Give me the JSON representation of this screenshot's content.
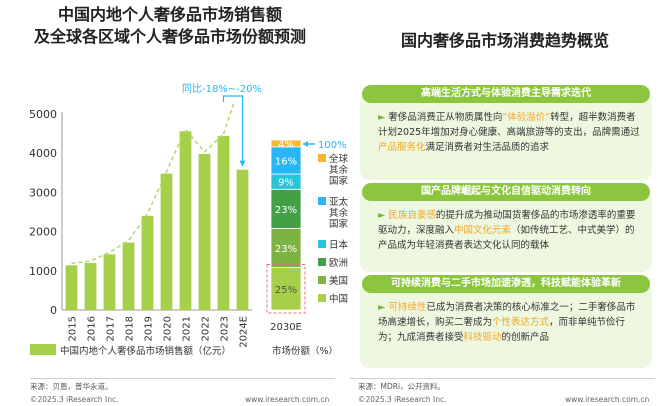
{
  "titles": {
    "left_line1": "中国内地个人奢侈品市场销售额",
    "left_line2": "及全球各区域个人奢侈品市场份额预测",
    "right": "国内奢侈品市场消费趋势概览"
  },
  "colors": {
    "bar": "#a6d04a",
    "trend": "#b5d66a",
    "arrow": "#29b6f6",
    "accent_text": "#f5a623",
    "card_head": "#8cc63f",
    "card_bg": "#eef7df"
  },
  "chart_data": [
    {
      "type": "bar",
      "categories": [
        "2015",
        "2016",
        "2017",
        "2018",
        "2019",
        "2020",
        "2021",
        "2022",
        "2023",
        "2024E"
      ],
      "values": [
        1140,
        1200,
        1420,
        1720,
        2400,
        3480,
        4560,
        3980,
        4440,
        3580
      ],
      "ylim": [
        0,
        5000
      ],
      "yticks": [
        0,
        1000,
        2000,
        3000,
        4000,
        5000
      ],
      "legend": "中国内地个人奢侈品市场销售额（亿元）",
      "annotation": "同比-18%~-20%",
      "trend_line": true,
      "grid": false
    },
    {
      "type": "bar",
      "stacked": true,
      "categories": [
        "2030E"
      ],
      "series": [
        {
          "name": "中国",
          "value": 25,
          "label": "25%",
          "color": "#a6d04a"
        },
        {
          "name": "美国",
          "value": 23,
          "label": "23%",
          "color": "#7cb342"
        },
        {
          "name": "欧洲",
          "value": 23,
          "label": "23%",
          "color": "#43a047"
        },
        {
          "name": "日本",
          "value": 9,
          "label": "9%",
          "color": "#26c6da"
        },
        {
          "name": "亚太其余国家",
          "value": 16,
          "label": "16%",
          "color": "#29b6f6"
        },
        {
          "name": "全球其余国家",
          "value": 4,
          "label": "4%",
          "color": "#f7b733"
        }
      ],
      "total_label": "100%",
      "legend_title": "市场份额（%）",
      "legend_labels": [
        "全球其余国家",
        "亚太其余国家",
        "日本",
        "欧洲",
        "美国",
        "中国"
      ]
    }
  ],
  "cards": [
    {
      "head": "高端生活方式与体验消费主导需求迭代",
      "parts": [
        {
          "t": "奢侈品消费正从物质属性向"
        },
        {
          "t": "“体验溢价”",
          "hl": true
        },
        {
          "t": "转型，超半数消费者计划2025年增加对身心健康、高端旅游等的支出，品牌需通过"
        },
        {
          "t": "产品服务化",
          "hl": true
        },
        {
          "t": "满足消费者对生活品质的追求"
        }
      ]
    },
    {
      "head": "国产品牌崛起与文化自信驱动消费转向",
      "parts": [
        {
          "t": "民族自豪感",
          "hl": true
        },
        {
          "t": "的提升成为推动国货奢侈品的市场渗透率的重要驱动力，深度融入"
        },
        {
          "t": "中国文化元素",
          "hl": true
        },
        {
          "t": "（如传统工艺、中式美学）的产品成为年轻消费者表达文化认同的载体"
        }
      ]
    },
    {
      "head": "可持续消费与二手市场加速渗透，科技赋能体验革新",
      "parts": [
        {
          "t": "可持续性",
          "hl": true
        },
        {
          "t": "已成为消费者决策的核心标准之一；二手奢侈品市场高速增长，购买二奢成为"
        },
        {
          "t": "个性表达方式",
          "hl": true
        },
        {
          "t": "，而非单纯节俭行为；九成消费者接受"
        },
        {
          "t": "科技驱动",
          "hl": true
        },
        {
          "t": "的创新产品"
        }
      ]
    }
  ],
  "sources": {
    "left": "来源：贝恩，普华永道。",
    "right": "来源：MDRi，公开资料。"
  },
  "footers": {
    "copyright": "©2025.3 iResearch Inc.",
    "url": "www.iresearch.com.cn"
  }
}
